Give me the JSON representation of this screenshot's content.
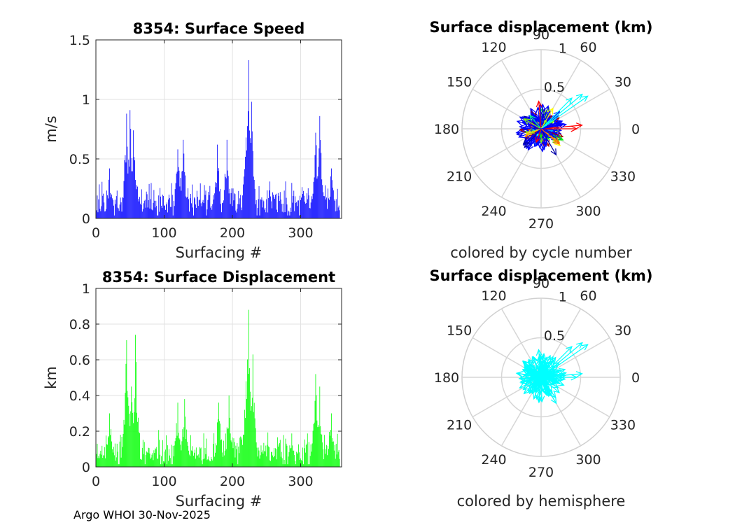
{
  "footer": {
    "credit": "Argo WHOI 30-Nov-2025"
  },
  "chart_data": [
    {
      "type": "bar",
      "title": "8354: Surface Speed",
      "xlabel": "Surfacing #",
      "ylabel": "m/s",
      "xlim": [
        0,
        360
      ],
      "ylim": [
        0,
        1.5
      ],
      "xticks": [
        "0",
        "100",
        "200",
        "300"
      ],
      "yticks": [
        "0",
        "0.5",
        "1",
        "1.5"
      ],
      "color": "#0000ff",
      "peaks": [
        {
          "x": 20,
          "value": 0.42
        },
        {
          "x": 45,
          "value": 0.88
        },
        {
          "x": 50,
          "value": 0.91
        },
        {
          "x": 55,
          "value": 0.74
        },
        {
          "x": 120,
          "value": 0.58
        },
        {
          "x": 128,
          "value": 0.66
        },
        {
          "x": 178,
          "value": 0.62
        },
        {
          "x": 192,
          "value": 0.66
        },
        {
          "x": 220,
          "value": 0.68
        },
        {
          "x": 224,
          "value": 1.33
        },
        {
          "x": 228,
          "value": 0.98
        },
        {
          "x": 322,
          "value": 0.72
        },
        {
          "x": 328,
          "value": 0.86
        },
        {
          "x": 345,
          "value": 0.42
        }
      ],
      "baseline_range": [
        0.05,
        0.35
      ]
    },
    {
      "type": "polar-arrows",
      "title": "Surface displacement (km)",
      "xlabel": "colored by cycle number",
      "rticks": [
        "0.5",
        "1"
      ],
      "angle_ticks": [
        "0",
        "30",
        "60",
        "90",
        "120",
        "150",
        "180",
        "210",
        "240",
        "270",
        "300",
        "330"
      ],
      "color_mode": "cycle",
      "arrows": [
        {
          "angle": 5,
          "r": 0.52,
          "color": "#ff0000"
        },
        {
          "angle": 0,
          "r": 0.45,
          "color": "#ff0000"
        },
        {
          "angle": 35,
          "r": 0.72,
          "color": "#00ffff"
        },
        {
          "angle": 40,
          "r": 0.68,
          "color": "#00ffff"
        },
        {
          "angle": 45,
          "r": 0.55,
          "color": "#00ffff"
        },
        {
          "angle": 95,
          "r": 0.35,
          "color": "#ff0000"
        },
        {
          "angle": 300,
          "r": 0.38,
          "color": "#0000aa"
        },
        {
          "angle": 200,
          "r": 0.2,
          "color": "#ffcc00"
        },
        {
          "angle": 150,
          "r": 0.25,
          "color": "#88ff00"
        },
        {
          "angle": 250,
          "r": 0.18,
          "color": "#ff0000"
        },
        {
          "angle": 320,
          "r": 0.3,
          "color": "#ff6600"
        },
        {
          "angle": 60,
          "r": 0.3,
          "color": "#ffff00"
        },
        {
          "angle": 130,
          "r": 0.22,
          "color": "#00ff88"
        },
        {
          "angle": 10,
          "r": 0.32,
          "color": "#0000ff"
        },
        {
          "angle": 180,
          "r": 0.1,
          "color": "#0000cc"
        }
      ]
    },
    {
      "type": "bar",
      "title": "8354: Surface Displacement",
      "xlabel": "Surfacing #",
      "ylabel": "km",
      "xlim": [
        0,
        360
      ],
      "ylim": [
        0,
        1
      ],
      "xticks": [
        "0",
        "100",
        "200",
        "300"
      ],
      "yticks": [
        "0",
        "0.2",
        "0.4",
        "0.6",
        "0.8",
        "1"
      ],
      "color": "#00ff00",
      "peaks": [
        {
          "x": 20,
          "value": 0.3
        },
        {
          "x": 45,
          "value": 0.71
        },
        {
          "x": 52,
          "value": 0.45
        },
        {
          "x": 58,
          "value": 0.74
        },
        {
          "x": 120,
          "value": 0.36
        },
        {
          "x": 130,
          "value": 0.38
        },
        {
          "x": 180,
          "value": 0.36
        },
        {
          "x": 195,
          "value": 0.4
        },
        {
          "x": 220,
          "value": 0.48
        },
        {
          "x": 224,
          "value": 0.88
        },
        {
          "x": 230,
          "value": 0.63
        },
        {
          "x": 322,
          "value": 0.52
        },
        {
          "x": 328,
          "value": 0.45
        },
        {
          "x": 345,
          "value": 0.3
        }
      ],
      "baseline_range": [
        0.03,
        0.22
      ]
    },
    {
      "type": "polar-arrows",
      "title": "Surface displacement (km)",
      "xlabel": "colored by hemisphere",
      "rticks": [
        "0.5",
        "1"
      ],
      "angle_ticks": [
        "0",
        "30",
        "60",
        "90",
        "120",
        "150",
        "180",
        "210",
        "240",
        "270",
        "300",
        "330"
      ],
      "color_mode": "hemisphere",
      "color": "#00ffff",
      "arrows": [
        {
          "angle": 5,
          "r": 0.52
        },
        {
          "angle": 0,
          "r": 0.45
        },
        {
          "angle": 35,
          "r": 0.72
        },
        {
          "angle": 40,
          "r": 0.68
        },
        {
          "angle": 45,
          "r": 0.55
        },
        {
          "angle": 95,
          "r": 0.35
        },
        {
          "angle": 300,
          "r": 0.38
        },
        {
          "angle": 200,
          "r": 0.2
        },
        {
          "angle": 150,
          "r": 0.25
        },
        {
          "angle": 250,
          "r": 0.18
        },
        {
          "angle": 320,
          "r": 0.3
        },
        {
          "angle": 60,
          "r": 0.3
        },
        {
          "angle": 130,
          "r": 0.22
        },
        {
          "angle": 10,
          "r": 0.32
        },
        {
          "angle": 180,
          "r": 0.1
        }
      ]
    }
  ]
}
